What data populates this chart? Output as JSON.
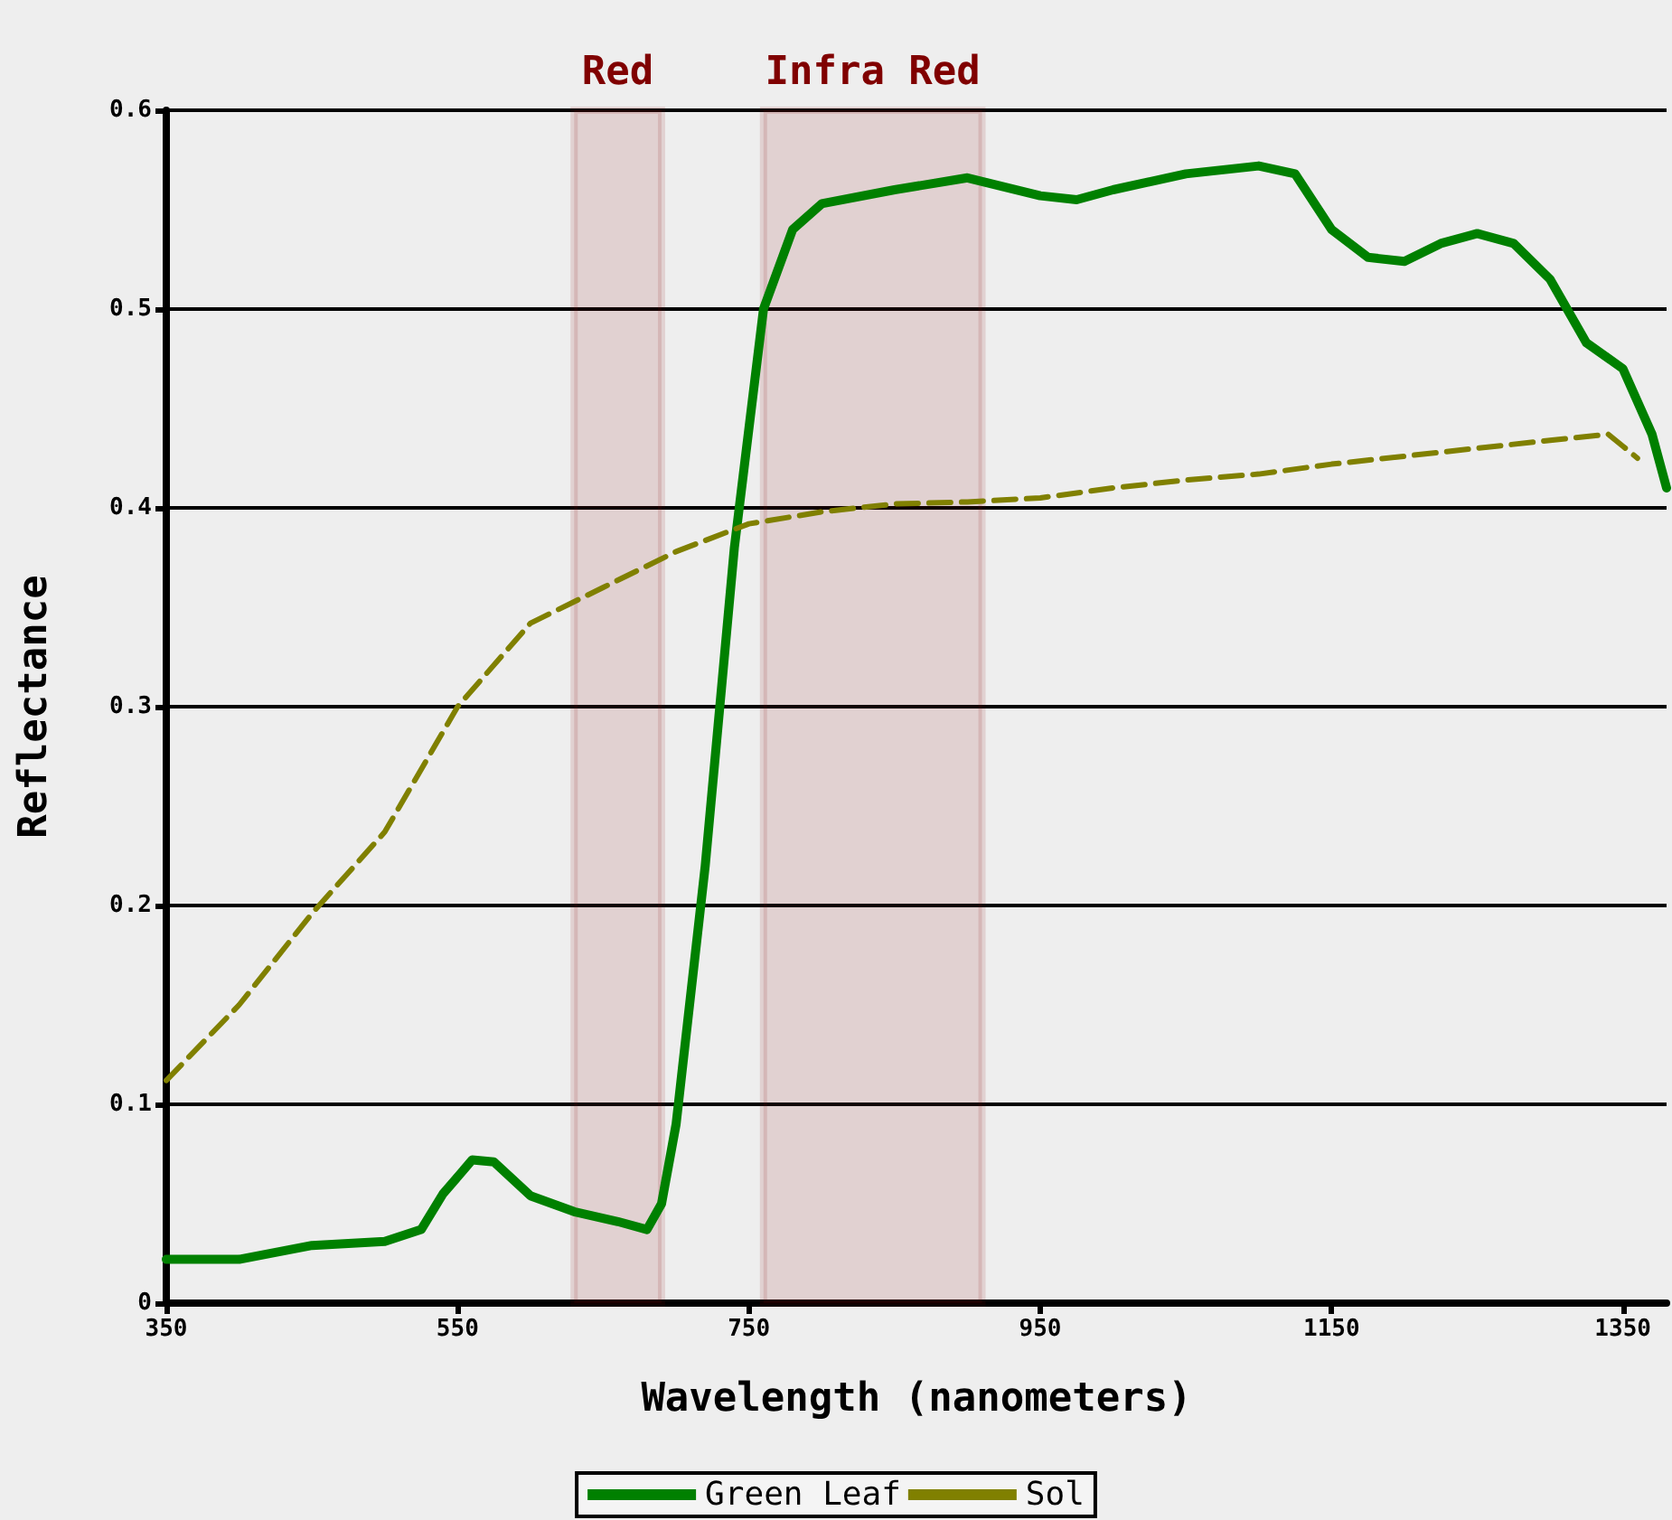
{
  "chart_data": {
    "type": "line",
    "xlabel": "Wavelength (nanometers)",
    "ylabel": "Reflectance",
    "xlim": [
      350,
      1380
    ],
    "xticks": [
      350,
      550,
      750,
      950,
      1150,
      1350
    ],
    "ylim": [
      0,
      0.6
    ],
    "yticks": [
      0,
      0.1,
      0.2,
      0.3,
      0.4,
      0.5,
      0.6
    ],
    "grid": "y",
    "legend": "bottom",
    "marker": "none",
    "bands": [
      {
        "axis": "x",
        "from": 630,
        "to": 690,
        "label": "Red",
        "color": "#800000"
      },
      {
        "axis": "x",
        "from": 760,
        "to": 910,
        "label": "Infra Red",
        "color": "#800000"
      }
    ],
    "series": [
      {
        "name": "Green Leaf",
        "color": "#008000",
        "line_style": "solid",
        "x": [
          350,
          400,
          450,
          500,
          525,
          540,
          560,
          575,
          600,
          630,
          660,
          680,
          690,
          700,
          720,
          740,
          760,
          780,
          800,
          850,
          900,
          950,
          975,
          1000,
          1050,
          1100,
          1125,
          1150,
          1175,
          1200,
          1225,
          1250,
          1275,
          1300,
          1325,
          1350,
          1370,
          1380
        ],
        "values": [
          0.022,
          0.022,
          0.029,
          0.031,
          0.037,
          0.055,
          0.072,
          0.071,
          0.054,
          0.046,
          0.041,
          0.037,
          0.05,
          0.09,
          0.22,
          0.38,
          0.5,
          0.54,
          0.553,
          0.56,
          0.566,
          0.557,
          0.555,
          0.56,
          0.568,
          0.572,
          0.568,
          0.54,
          0.526,
          0.524,
          0.533,
          0.538,
          0.533,
          0.515,
          0.483,
          0.47,
          0.437,
          0.41
        ]
      },
      {
        "name": "Sol",
        "color": "#808000",
        "line_style": "dashed",
        "x": [
          350,
          400,
          450,
          500,
          550,
          600,
          650,
          700,
          750,
          800,
          850,
          900,
          950,
          1000,
          1050,
          1100,
          1150,
          1200,
          1250,
          1300,
          1340,
          1350,
          1360
        ],
        "values": [
          0.112,
          0.15,
          0.196,
          0.237,
          0.3,
          0.342,
          0.36,
          0.378,
          0.392,
          0.398,
          0.402,
          0.403,
          0.405,
          0.41,
          0.414,
          0.417,
          0.422,
          0.426,
          0.43,
          0.434,
          0.437,
          0.431,
          0.425
        ]
      }
    ]
  }
}
